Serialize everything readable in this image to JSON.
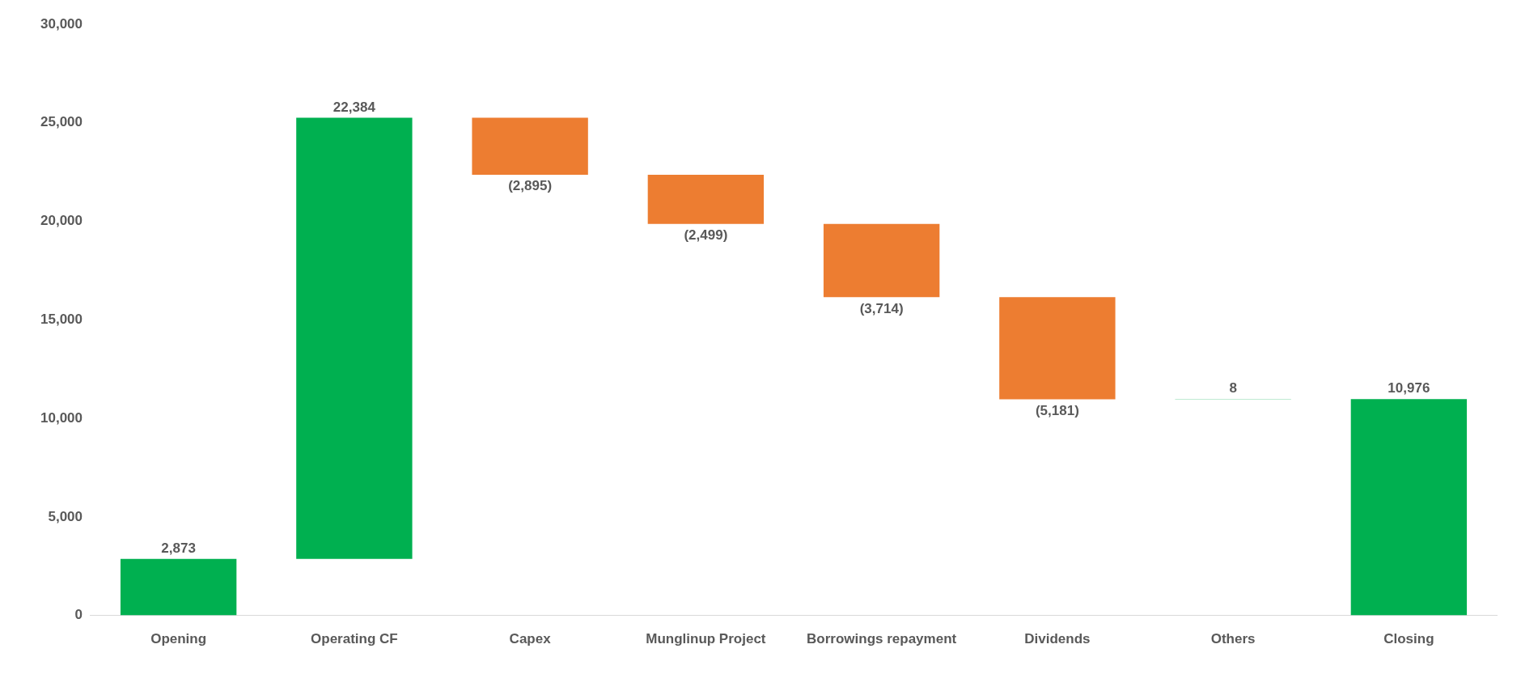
{
  "chart_data": {
    "type": "bar",
    "categories": [
      "Opening",
      "Operating CF",
      "Capex",
      "Munglinup Project",
      "Borrowings repayment",
      "Dividends",
      "Others",
      "Closing"
    ],
    "values": [
      2873,
      22384,
      -2895,
      -2499,
      -3714,
      -5181,
      8,
      10976
    ],
    "base": [
      0,
      2873,
      25257,
      22362,
      19863,
      16149,
      10968,
      0
    ],
    "colors": [
      "#00b050",
      "#00b050",
      "#ed7d31",
      "#ed7d31",
      "#ed7d31",
      "#ed7d31",
      "#00b050",
      "#00b050"
    ],
    "value_labels": [
      "2,873",
      "22,384",
      "(2,895)",
      "(2,499)",
      "(3,714)",
      "(5,181)",
      "8",
      "10,976"
    ],
    "ylim": [
      0,
      30000
    ],
    "yticks": [
      {
        "value": 0,
        "label": "0"
      },
      {
        "value": 5000,
        "label": "5,000"
      },
      {
        "value": 10000,
        "label": "10,000"
      },
      {
        "value": 15000,
        "label": "15,000"
      },
      {
        "value": 20000,
        "label": "20,000"
      },
      {
        "value": 25000,
        "label": "25,000"
      },
      {
        "value": 30000,
        "label": "30,000"
      }
    ],
    "grid": false,
    "legend": false
  }
}
